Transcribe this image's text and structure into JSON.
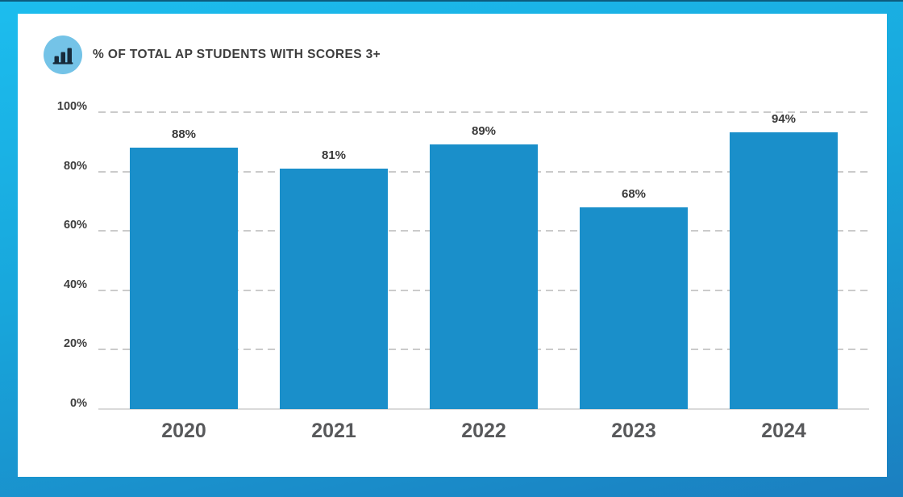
{
  "header": {
    "icon": "bar-chart-icon",
    "title": "% OF TOTAL AP STUDENTS WITH SCORES 3+"
  },
  "chart_data": {
    "type": "bar",
    "title": "% OF TOTAL AP STUDENTS WITH SCORES 3+",
    "categories": [
      "2020",
      "2021",
      "2022",
      "2023",
      "2024"
    ],
    "values": [
      88,
      81,
      89,
      68,
      94
    ],
    "value_labels": [
      "88%",
      "81%",
      "89%",
      "68%",
      "94%"
    ],
    "xlabel": "",
    "ylabel": "",
    "ylim": [
      0,
      100
    ],
    "yticks": [
      0,
      20,
      40,
      60,
      80,
      100
    ],
    "ytick_labels": [
      "0%",
      "20%",
      "40%",
      "60%",
      "80%",
      "100%"
    ],
    "grid": "horizontal-dashed",
    "legend": "none",
    "bar_color": "#1a8fca"
  },
  "colors": {
    "bar": "#1a8fca",
    "frame_gradient_top": "#1cbdee",
    "frame_gradient_bottom": "#1b7fc0",
    "icon_circle": "#74c3e7",
    "icon_glyph": "#172a3a",
    "gridline": "#cbcbcb",
    "baseline": "#dadada",
    "tick_text": "#3e3e3e",
    "value_text": "#3a3a3a",
    "year_text": "#58595b"
  }
}
